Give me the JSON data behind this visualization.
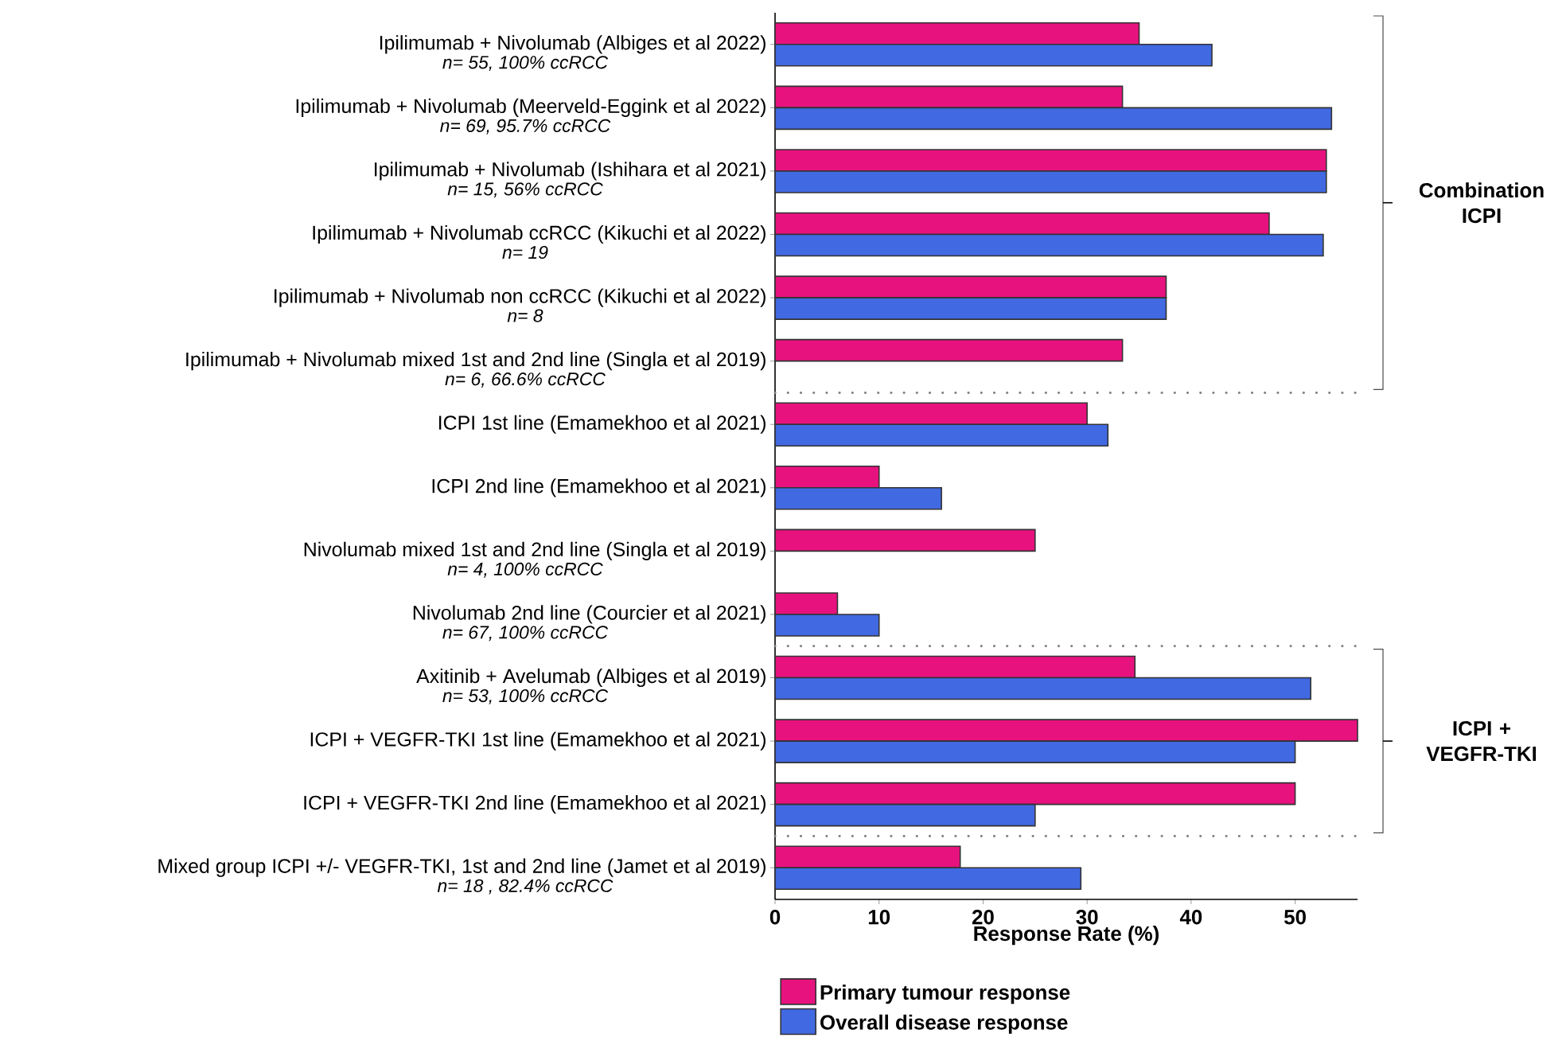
{
  "chart_data": {
    "type": "bar",
    "orientation": "horizontal",
    "xlabel": "Response Rate (%)",
    "categories": [
      "Ipilimumab + Nivolumab (Albiges et al 2022)",
      "Ipilimumab + Nivolumab (Meerveld-Eggink et al 2022)",
      "Ipilimumab + Nivolumab (Ishihara et al 2021)",
      "Ipilimumab + Nivolumab ccRCC (Kikuchi et al 2022)",
      "Ipilimumab + Nivolumab non ccRCC (Kikuchi et al 2022)",
      "Ipilimumab + Nivolumab mixed 1st and 2nd line (Singla et al 2019)",
      "ICPI 1st line (Emamekhoo et al 2021)",
      "ICPI 2nd line (Emamekhoo et al 2021)",
      "Nivolumab mixed 1st and 2nd line (Singla et al 2019)",
      "Nivolumab 2nd line (Courcier et al 2021)",
      "Axitinib + Avelumab (Albiges et al 2019)",
      "ICPI + VEGFR-TKI 1st line (Emamekhoo et al 2021)",
      "ICPI + VEGFR-TKI 2nd line (Emamekhoo et al 2021)",
      "Mixed group ICPI +/- VEGFR-TKI, 1st and 2nd line (Jamet et al 2019)"
    ],
    "series": [
      {
        "name": "Primary tumour response",
        "color": "#e8127f",
        "values": [
          35,
          33.4,
          53,
          47.5,
          37.6,
          33.4,
          30,
          10,
          25,
          6,
          34.6,
          56,
          50,
          17.8
        ]
      },
      {
        "name": "Overall disease response",
        "color": "#4169e1",
        "values": [
          42,
          53.5,
          53,
          52.7,
          37.6,
          null,
          32,
          16,
          null,
          10,
          51.5,
          50,
          25,
          29.4
        ]
      }
    ],
    "xlim": [
      0,
      56
    ],
    "xticks": [
      0,
      10,
      20,
      30,
      40,
      50
    ],
    "legend": "bottom",
    "annotations": [
      "n= 55, 100% ccRCC",
      "n= 69, 95.7% ccRCC",
      "n= 15, 56% ccRCC",
      "n= 19",
      "n= 8",
      "n= 6, 66.6% ccRCC",
      "n= 4, 100% ccRCC",
      "n= 67, 100% ccRCC",
      "n= 53, 100% ccRCC",
      "n= 18 , 82.4% ccRCC",
      "Combination ICPI",
      "ICPI + VEGFR-TKI"
    ]
  }
}
